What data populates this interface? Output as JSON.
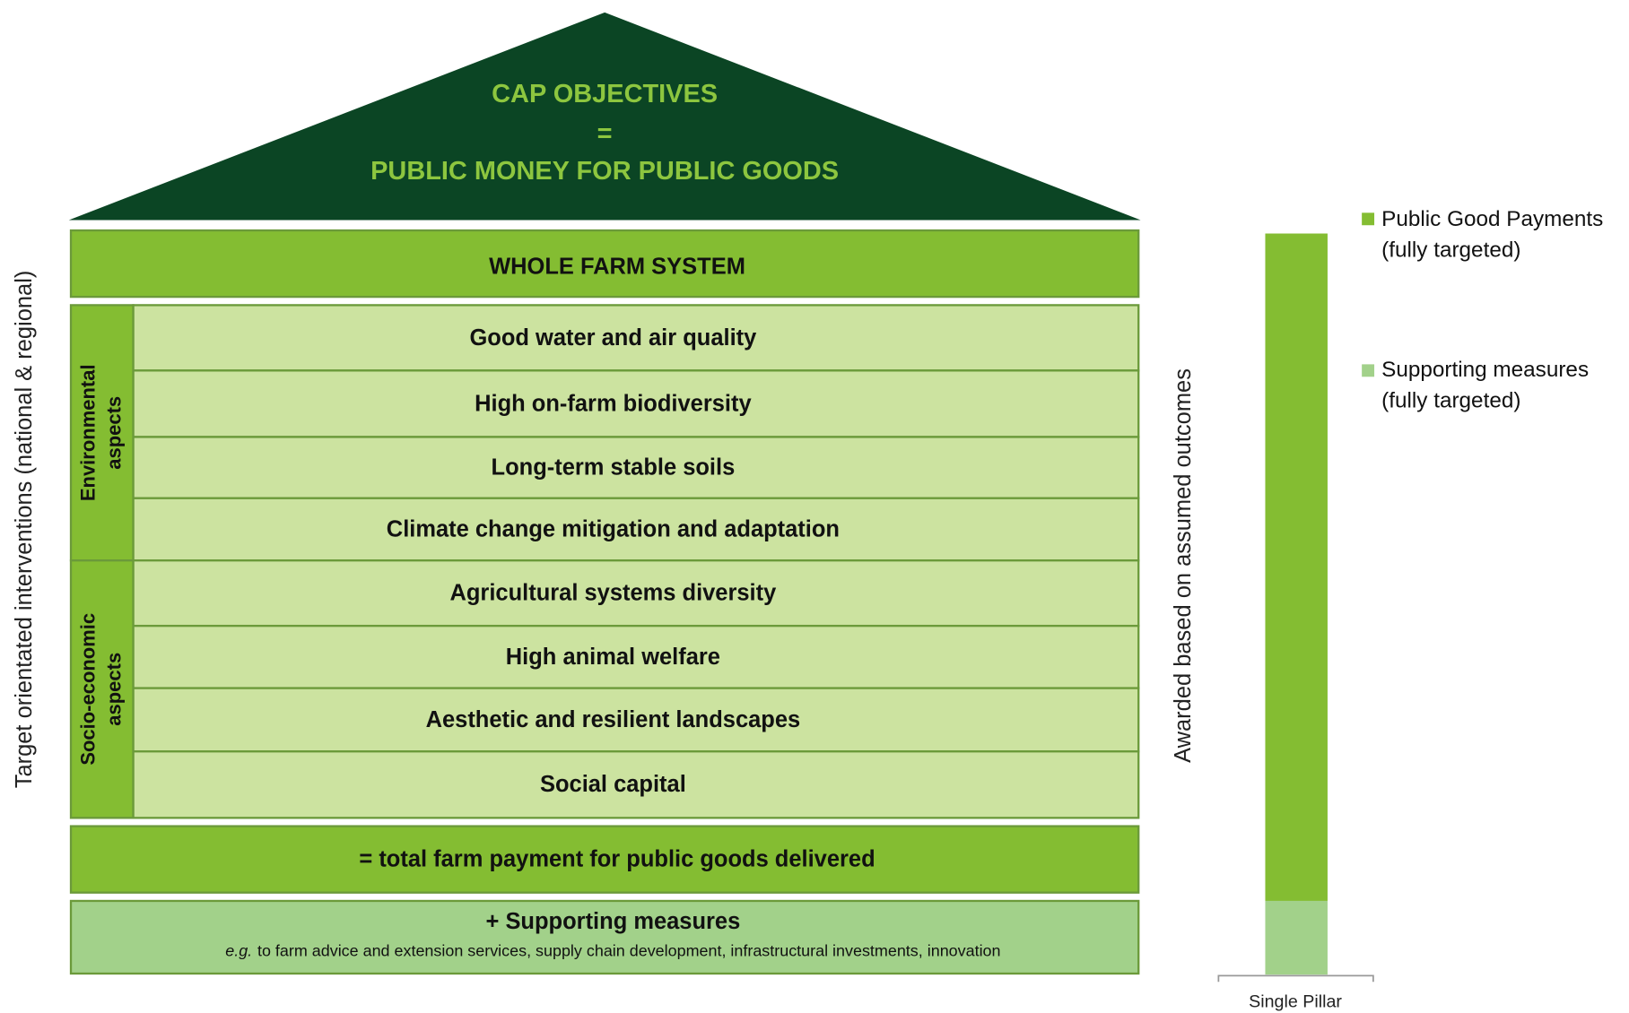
{
  "roof": {
    "lines": [
      "CAP OBJECTIVES",
      "=",
      "PUBLIC MONEY FOR PUBLIC GOODS"
    ]
  },
  "whole_farm": "WHOLE FARM SYSTEM",
  "groups": [
    {
      "label": [
        "Environmental",
        "aspects"
      ],
      "items": [
        "Good water and air quality",
        "High on-farm biodiversity",
        "Long-term stable soils",
        "Climate change mitigation and adaptation"
      ]
    },
    {
      "label": [
        "Socio-economic",
        "aspects"
      ],
      "items": [
        "Agricultural systems diversity",
        "High animal welfare",
        "Aesthetic and resilient landscapes",
        "Social capital"
      ]
    }
  ],
  "total": "= total farm payment for public goods delivered",
  "supporting": {
    "title": "+ Supporting measures",
    "note_prefix": "e.g.",
    "note": "to farm advice and extension services, supply chain development, infrastructural investments, innovation"
  },
  "left_axis": "Target orientated interventions (national & regional)",
  "right_axis": "Awarded based on assumed outcomes",
  "bar_label": "Single Pillar",
  "legend": [
    {
      "lines": [
        "Public Good Payments",
        "(fully targeted)"
      ]
    },
    {
      "lines": [
        "Supporting measures",
        "(fully targeted)"
      ]
    }
  ]
}
